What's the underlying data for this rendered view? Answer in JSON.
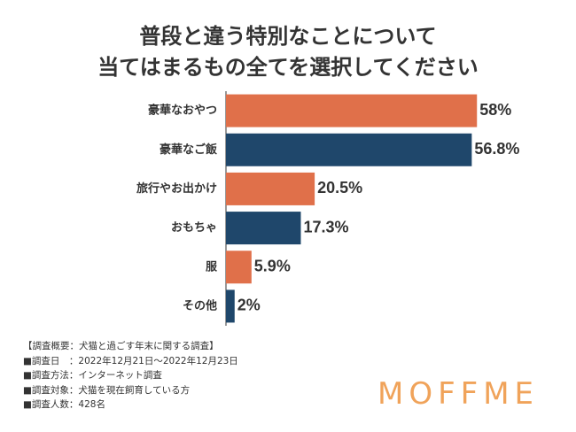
{
  "title": {
    "line1": "普段と違う特別なことについて",
    "line2": "当てはまるもの全てを選択してください"
  },
  "chart_data": {
    "type": "bar",
    "orientation": "horizontal",
    "categories": [
      "豪華なおやつ",
      "豪華なご飯",
      "旅行やお出かけ",
      "おもちゃ",
      "服",
      "その他"
    ],
    "values": [
      58,
      56.8,
      20.5,
      17.3,
      5.9,
      2
    ],
    "value_labels": [
      "58%",
      "56.8%",
      "20.5%",
      "17.3%",
      "5.9%",
      "2%"
    ],
    "bar_colors": [
      "#e0704a",
      "#1f476b",
      "#e0704a",
      "#1f476b",
      "#e0704a",
      "#1f476b"
    ],
    "xlim": [
      0,
      60
    ],
    "grid": false,
    "legend": "none"
  },
  "survey": {
    "header": "【調査概要：犬猫と過ごす年末に関する調査】",
    "rows": [
      "■調査日　：2022年12月21日〜2022年12月23日",
      "■調査方法：インターネット調査",
      "■調査対象：犬猫を現在飼育している方",
      "■調査人数：428名"
    ]
  },
  "logo": {
    "text": "MOFFME",
    "color": "#f0a35a"
  }
}
